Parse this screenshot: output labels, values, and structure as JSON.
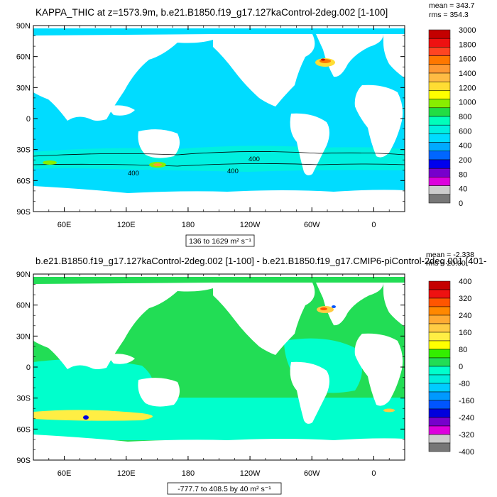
{
  "chart_data": [
    {
      "type": "heatmap",
      "title": "KAPPA_THIC at z=1573.9m, b.e21.B1850.f19_g17.127kaControl-2deg.002 [1-100]",
      "stats": [
        "mean = 343.7",
        "rms = 354.3"
      ],
      "y_ticks": [
        "90N",
        "60N",
        "30N",
        "0",
        "30S",
        "60S",
        "90S"
      ],
      "x_ticks": [
        "60E",
        "120E",
        "180",
        "120W",
        "60W",
        "0"
      ],
      "colorbar_labels": [
        "3000",
        "1800",
        "1600",
        "1400",
        "1200",
        "1000",
        "800",
        "600",
        "400",
        "200",
        "80",
        "40",
        "0"
      ],
      "colorbar_colors": [
        "#c40000",
        "#ee1111",
        "#ff4422",
        "#ff7700",
        "#ff9933",
        "#ffbb44",
        "#ffdd33",
        "#ffff00",
        "#88ee00",
        "#22dd44",
        "#00ffbb",
        "#00f0e0",
        "#00dcff",
        "#00aaff",
        "#0066ff",
        "#0000ee",
        "#7700cc",
        "#dd00dd",
        "#cccccc",
        "#777777"
      ],
      "contour_labels": [
        "400",
        "400",
        "400"
      ],
      "range_label": "136 to 1629 m² s⁻¹"
    },
    {
      "type": "heatmap",
      "title": "b.e21.B1850.f19_g17.127kaControl-2deg.002 [1-100] - b.e21.B1850.f19_g17.CMIP6-piControl-2deg.001 [401-",
      "stats": [
        "mean = -2.338",
        "rms = 20.00"
      ],
      "y_ticks": [
        "90N",
        "60N",
        "30N",
        "0",
        "30S",
        "60S",
        "90S"
      ],
      "x_ticks": [
        "60E",
        "120E",
        "180",
        "120W",
        "60W",
        "0"
      ],
      "colorbar_labels": [
        "400",
        "320",
        "240",
        "160",
        "80",
        "0",
        "-80",
        "-160",
        "-240",
        "-320",
        "-400"
      ],
      "colorbar_colors": [
        "#c40000",
        "#ee1111",
        "#ff5500",
        "#ff8800",
        "#ffaa33",
        "#ffcc44",
        "#ffee44",
        "#ffff00",
        "#33ee00",
        "#22dd55",
        "#00ffcc",
        "#00eedd",
        "#00ccff",
        "#0099ff",
        "#0055ff",
        "#0000dd",
        "#7700cc",
        "#dd00dd",
        "#cccccc",
        "#777777"
      ],
      "range_label": "-777.7 to 408.5 by 40 m² s⁻¹"
    }
  ]
}
